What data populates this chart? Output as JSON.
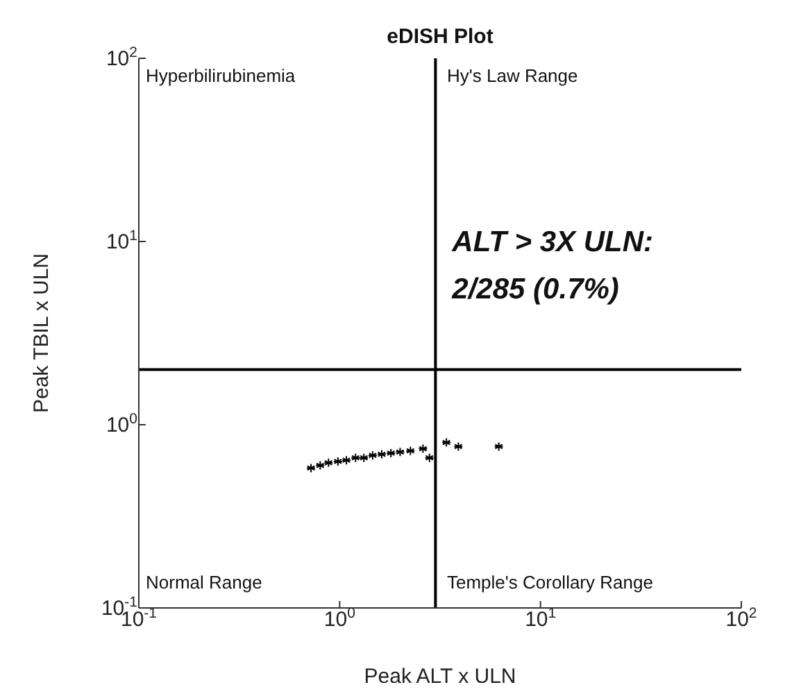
{
  "chart_data": {
    "type": "scatter",
    "title": "eDISH Plot",
    "xlabel": "Peak ALT x ULN",
    "ylabel": "Peak TBIL x ULN",
    "log": "xy",
    "marker": "cross",
    "grid": false,
    "xlim": [
      0.1,
      100
    ],
    "ylim": [
      0.1,
      100
    ],
    "xticks": [
      {
        "value": 0.1,
        "label": "10$^{-1}$"
      },
      {
        "value": 1,
        "label": "10$^{0}$"
      },
      {
        "value": 10,
        "label": "10$^{1}$"
      },
      {
        "value": 100,
        "label": "10$^{2}$"
      }
    ],
    "yticks": [
      {
        "value": 0.1,
        "label": "10$^{-1}$"
      },
      {
        "value": 1,
        "label": "10$^{0}$"
      },
      {
        "value": 10,
        "label": "10$^{1}$"
      },
      {
        "value": 100,
        "label": "10$^{2}$"
      }
    ],
    "ref_lines": [
      {
        "axis": "x",
        "value": 3,
        "color": "#000000"
      },
      {
        "axis": "y",
        "value": 2,
        "color": "#000000"
      }
    ],
    "annotations": [
      "Hyperbilirubinemia",
      "Hy's Law Range",
      "Normal Range",
      "Temple's Corollary Range",
      "ALT > 3X ULN: 2/285 (0.7%)"
    ],
    "series": [
      {
        "color": "#000000",
        "x": [
          0.72,
          0.8,
          0.88,
          0.98,
          1.08,
          1.2,
          1.32,
          1.46,
          1.62,
          1.8,
          2.0,
          2.25,
          2.6,
          2.8,
          3.4,
          3.9,
          6.2
        ],
        "values": [
          0.58,
          0.6,
          0.62,
          0.63,
          0.64,
          0.66,
          0.66,
          0.68,
          0.69,
          0.7,
          0.71,
          0.72,
          0.74,
          0.66,
          0.8,
          0.76,
          0.76
        ]
      }
    ]
  }
}
